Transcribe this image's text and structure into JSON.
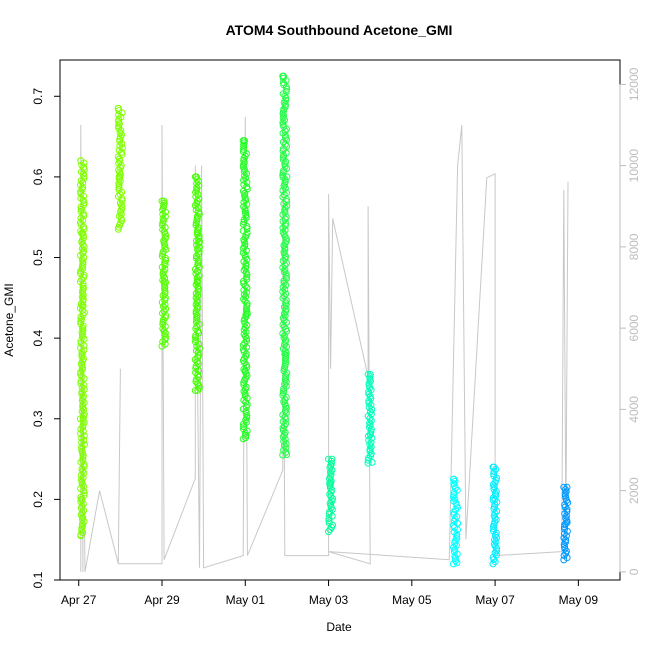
{
  "chart_data": {
    "type": "scatter",
    "title": "ATOM4 Southbound Acetone_GMI",
    "xlabel": "Date",
    "ylabel": "Acetone_GMI",
    "x_ticks": [
      "Apr 27",
      "Apr 29",
      "May 01",
      "May 03",
      "May 05",
      "May 07",
      "May 09"
    ],
    "x_tick_days": [
      0,
      2,
      4,
      6,
      8,
      10,
      12
    ],
    "xlim_days": [
      -0.45,
      13.0
    ],
    "ylim": [
      0.1,
      0.745
    ],
    "y_ticks": [
      "0.1",
      "0.2",
      "0.3",
      "0.4",
      "0.5",
      "0.6",
      "0.7"
    ],
    "y2_ticks": [
      "0",
      "2000",
      "4000",
      "6000",
      "8000",
      "10000",
      "12000"
    ],
    "y2lim": [
      -200,
      12600
    ],
    "y2_color": "#bdbdbd",
    "grid": false,
    "series": [
      {
        "color": "#7fff00",
        "points": [
          [
            0.05,
            0.155
          ],
          [
            0.05,
            0.62
          ],
          [
            0.05,
            0.48
          ],
          [
            0.1,
            0.53
          ],
          [
            0.08,
            0.44
          ],
          [
            0.04,
            0.3
          ],
          [
            0.06,
            0.2
          ]
        ]
      },
      {
        "color": "#7fff00",
        "points": [
          [
            0.95,
            0.535
          ],
          [
            0.95,
            0.685
          ],
          [
            0.97,
            0.6
          ]
        ]
      },
      {
        "color": "#55ff00",
        "points": [
          [
            2.0,
            0.39
          ],
          [
            2.0,
            0.57
          ],
          [
            2.05,
            0.47
          ]
        ]
      },
      {
        "color": "#44ff00",
        "points": [
          [
            2.8,
            0.335
          ],
          [
            2.8,
            0.6
          ],
          [
            2.85,
            0.47
          ],
          [
            2.9,
            0.52
          ]
        ]
      },
      {
        "color": "#22ff22",
        "points": [
          [
            3.95,
            0.275
          ],
          [
            3.95,
            0.645
          ],
          [
            4.0,
            0.36
          ],
          [
            4.05,
            0.43
          ]
        ]
      },
      {
        "color": "#22ff44",
        "points": [
          [
            4.9,
            0.255
          ],
          [
            4.9,
            0.725
          ],
          [
            4.95,
            0.38
          ],
          [
            5.0,
            0.6
          ]
        ]
      },
      {
        "color": "#00ff99",
        "points": [
          [
            6.0,
            0.16
          ],
          [
            6.0,
            0.25
          ],
          [
            6.05,
            0.22
          ]
        ]
      },
      {
        "color": "#00ffbb",
        "points": [
          [
            6.95,
            0.245
          ],
          [
            6.95,
            0.355
          ],
          [
            7.0,
            0.28
          ]
        ]
      },
      {
        "color": "#00ffff",
        "points": [
          [
            9.0,
            0.12
          ],
          [
            9.0,
            0.225
          ],
          [
            9.1,
            0.17
          ]
        ]
      },
      {
        "color": "#00eeff",
        "points": [
          [
            9.95,
            0.12
          ],
          [
            9.95,
            0.24
          ],
          [
            10.0,
            0.2
          ]
        ]
      },
      {
        "color": "#0099ff",
        "points": [
          [
            11.65,
            0.125
          ],
          [
            11.65,
            0.215
          ],
          [
            11.7,
            0.17
          ]
        ]
      }
    ],
    "secondary_line": {
      "color": "#c8c8c8",
      "note": "altitude trace, right axis",
      "points": [
        [
          0.05,
          0
        ],
        [
          0.05,
          11000
        ],
        [
          0.1,
          0
        ],
        [
          0.1,
          5000
        ],
        [
          0.15,
          0
        ],
        [
          0.5,
          2000
        ],
        [
          0.95,
          200
        ],
        [
          1.0,
          5000
        ],
        [
          0.95,
          200
        ],
        [
          2.0,
          200
        ],
        [
          2.0,
          11000
        ],
        [
          2.05,
          300
        ],
        [
          2.8,
          2300
        ],
        [
          2.8,
          10000
        ],
        [
          2.9,
          100
        ],
        [
          2.95,
          10000
        ],
        [
          3.0,
          100
        ],
        [
          3.95,
          400
        ],
        [
          4.0,
          11200
        ],
        [
          4.05,
          400
        ],
        [
          4.9,
          2500
        ],
        [
          4.9,
          11600
        ],
        [
          4.95,
          400
        ],
        [
          6.0,
          400
        ],
        [
          6.0,
          9300
        ],
        [
          6.05,
          5000
        ],
        [
          6.1,
          8700
        ],
        [
          6.95,
          4800
        ],
        [
          6.95,
          9000
        ],
        [
          7.0,
          200
        ],
        [
          6.0,
          500
        ],
        [
          8.9,
          300
        ],
        [
          9.1,
          10000
        ],
        [
          9.2,
          11000
        ],
        [
          9.3,
          800
        ],
        [
          9.8,
          9700
        ],
        [
          10.0,
          9800
        ],
        [
          10.0,
          400
        ],
        [
          11.6,
          500
        ],
        [
          11.65,
          9400
        ],
        [
          11.7,
          1200
        ],
        [
          11.75,
          9600
        ]
      ]
    }
  }
}
